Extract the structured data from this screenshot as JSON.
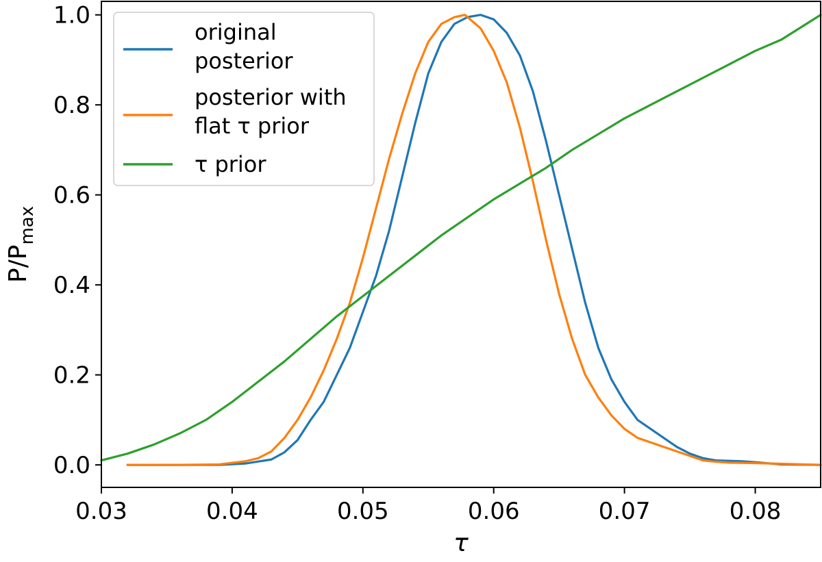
{
  "chart_data": {
    "type": "line",
    "xlabel": "τ",
    "ylabel": "P/P",
    "ylabel_sub": "max",
    "xlim": [
      0.03,
      0.085
    ],
    "ylim": [
      -0.05,
      1.03
    ],
    "xticks": [
      0.03,
      0.04,
      0.05,
      0.06,
      0.07,
      0.08
    ],
    "xtick_labels": [
      "0.03",
      "0.04",
      "0.05",
      "0.06",
      "0.07",
      "0.08"
    ],
    "yticks": [
      0.0,
      0.2,
      0.4,
      0.6,
      0.8,
      1.0
    ],
    "ytick_labels": [
      "0.0",
      "0.2",
      "0.4",
      "0.6",
      "0.8",
      "1.0"
    ],
    "grid": false,
    "legend_position": "top-left",
    "series": [
      {
        "name": "original posterior",
        "legend_lines": [
          "original",
          "posterior"
        ],
        "color": "#1f77b4",
        "x": [
          0.032,
          0.036,
          0.039,
          0.041,
          0.043,
          0.044,
          0.045,
          0.046,
          0.047,
          0.048,
          0.049,
          0.05,
          0.051,
          0.052,
          0.053,
          0.054,
          0.055,
          0.056,
          0.057,
          0.058,
          0.059,
          0.06,
          0.061,
          0.062,
          0.063,
          0.064,
          0.065,
          0.066,
          0.067,
          0.068,
          0.069,
          0.07,
          0.071,
          0.072,
          0.073,
          0.074,
          0.075,
          0.076,
          0.077,
          0.078,
          0.079,
          0.08,
          0.082,
          0.085
        ],
        "y": [
          0.0,
          0.0,
          0.0,
          0.003,
          0.012,
          0.028,
          0.055,
          0.1,
          0.14,
          0.2,
          0.26,
          0.34,
          0.42,
          0.52,
          0.64,
          0.76,
          0.87,
          0.94,
          0.98,
          0.995,
          1.0,
          0.99,
          0.96,
          0.91,
          0.83,
          0.72,
          0.6,
          0.48,
          0.36,
          0.26,
          0.19,
          0.14,
          0.1,
          0.08,
          0.06,
          0.04,
          0.025,
          0.015,
          0.01,
          0.009,
          0.008,
          0.006,
          0.001,
          0.0
        ]
      },
      {
        "name": "posterior with flat τ prior",
        "legend_lines": [
          "posterior with",
          "flat τ prior"
        ],
        "color": "#ff7f0e",
        "x": [
          0.032,
          0.036,
          0.039,
          0.041,
          0.042,
          0.043,
          0.044,
          0.045,
          0.046,
          0.047,
          0.048,
          0.049,
          0.05,
          0.051,
          0.052,
          0.053,
          0.054,
          0.055,
          0.056,
          0.057,
          0.0578,
          0.058,
          0.059,
          0.06,
          0.061,
          0.062,
          0.063,
          0.064,
          0.065,
          0.066,
          0.067,
          0.068,
          0.069,
          0.07,
          0.071,
          0.072,
          0.073,
          0.074,
          0.075,
          0.076,
          0.077,
          0.078,
          0.08,
          0.085
        ],
        "y": [
          0.0,
          0.0,
          0.001,
          0.008,
          0.015,
          0.03,
          0.06,
          0.1,
          0.15,
          0.21,
          0.28,
          0.36,
          0.46,
          0.57,
          0.68,
          0.78,
          0.87,
          0.94,
          0.98,
          0.995,
          1.0,
          0.995,
          0.97,
          0.92,
          0.85,
          0.75,
          0.63,
          0.5,
          0.38,
          0.28,
          0.2,
          0.15,
          0.11,
          0.08,
          0.06,
          0.05,
          0.04,
          0.03,
          0.02,
          0.01,
          0.007,
          0.005,
          0.004,
          0.0
        ]
      },
      {
        "name": "τ prior",
        "legend_lines": [
          "τ prior"
        ],
        "color": "#2ca02c",
        "x": [
          0.03,
          0.032,
          0.034,
          0.036,
          0.038,
          0.04,
          0.042,
          0.044,
          0.046,
          0.048,
          0.05,
          0.052,
          0.054,
          0.056,
          0.058,
          0.06,
          0.062,
          0.064,
          0.066,
          0.068,
          0.07,
          0.072,
          0.074,
          0.076,
          0.078,
          0.08,
          0.082,
          0.085
        ],
        "y": [
          0.01,
          0.025,
          0.045,
          0.07,
          0.1,
          0.14,
          0.185,
          0.23,
          0.28,
          0.33,
          0.375,
          0.42,
          0.465,
          0.51,
          0.55,
          0.59,
          0.625,
          0.66,
          0.7,
          0.735,
          0.77,
          0.8,
          0.83,
          0.86,
          0.89,
          0.92,
          0.945,
          1.0
        ]
      }
    ]
  }
}
